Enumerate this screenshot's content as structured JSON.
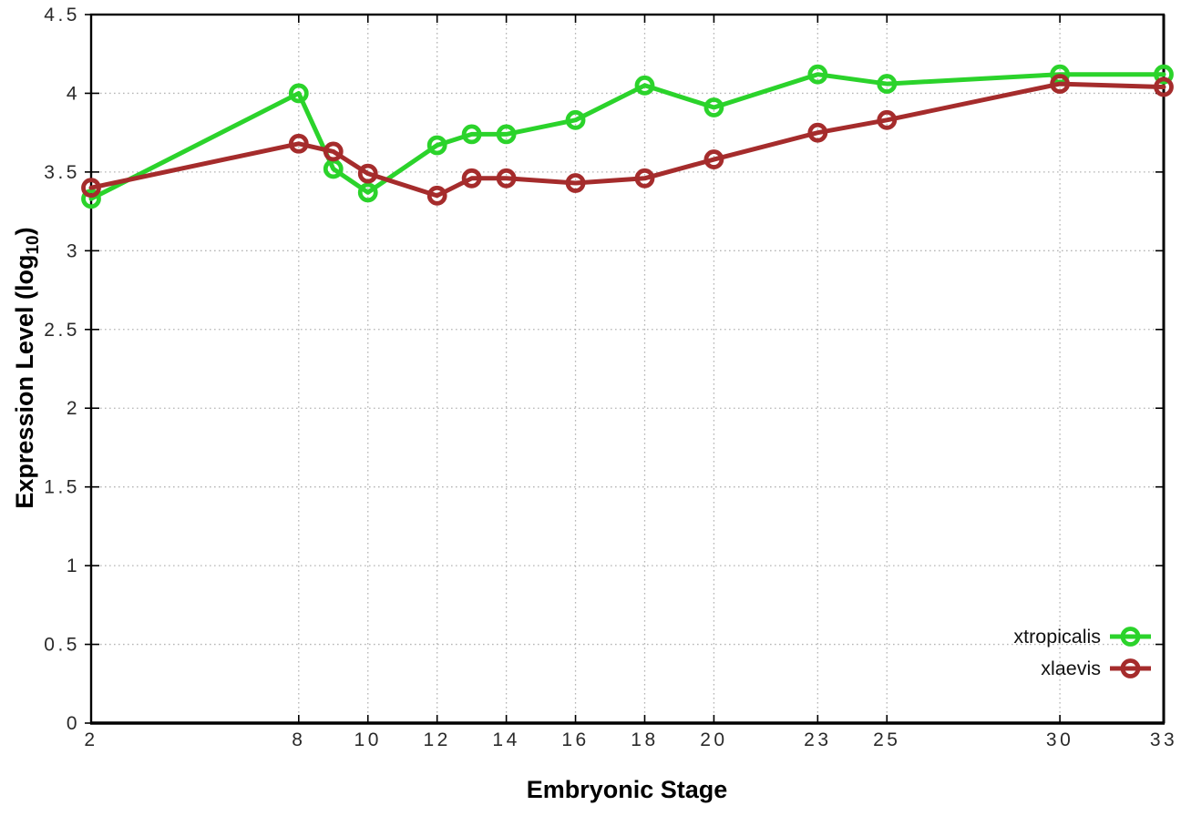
{
  "chart_data": {
    "type": "line",
    "title": "",
    "xlabel": "Embryonic Stage",
    "ylabel": "Expression Level (log10)",
    "ylabel_parts": {
      "main": "Expression Level (log",
      "sub": "10",
      "end": ")"
    },
    "xlim": [
      2,
      33
    ],
    "ylim": [
      0,
      4.5
    ],
    "x_ticks": [
      2,
      8,
      10,
      12,
      14,
      16,
      18,
      20,
      23,
      25,
      30,
      33
    ],
    "y_ticks": [
      0,
      0.5,
      1,
      1.5,
      2,
      2.5,
      3,
      3.5,
      4,
      4.5
    ],
    "y_tick_labels": [
      "0",
      "0.5",
      "1",
      "1.5",
      "2",
      "2.5",
      "3",
      "3.5",
      "4",
      "4.5"
    ],
    "grid": true,
    "legend_position": "inside-bottom-right",
    "marker": "open-circle",
    "x": [
      2,
      8,
      9,
      10,
      12,
      13,
      14,
      16,
      18,
      20,
      23,
      25,
      30,
      33
    ],
    "series": [
      {
        "name": "xtropicalis",
        "color": "#2bd32b",
        "values": [
          3.33,
          4.0,
          3.52,
          3.37,
          3.67,
          3.74,
          3.74,
          3.83,
          4.05,
          3.91,
          4.12,
          4.06,
          4.12,
          4.12
        ]
      },
      {
        "name": "xlaevis",
        "color": "#a52c2c",
        "values": [
          3.4,
          3.68,
          3.63,
          3.49,
          3.35,
          3.46,
          3.46,
          3.43,
          3.46,
          3.58,
          3.75,
          3.83,
          4.06,
          4.04
        ]
      }
    ],
    "colors": {
      "grid": "#b5b5b5",
      "border": "#000000",
      "tick_text": "#2a2a2a",
      "legend_text": "#111111"
    }
  }
}
